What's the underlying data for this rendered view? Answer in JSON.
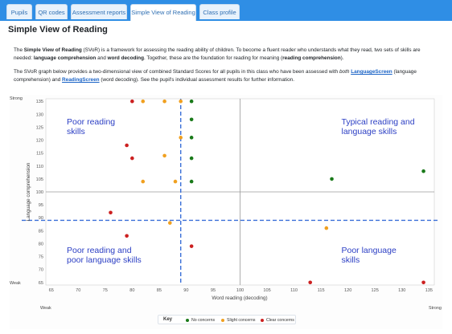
{
  "tabs": [
    {
      "label": "Pupils"
    },
    {
      "label": "QR codes"
    },
    {
      "label": "Assessment reports"
    },
    {
      "label": "Simple View of Reading",
      "active": true
    },
    {
      "label": "Class profile"
    }
  ],
  "page_title": "Simple View of Reading",
  "intro": {
    "p1_a": "The ",
    "p1_b": "Simple View of Reading",
    "p1_c": " (SVoR) is a framework for assessing the reading ability of children. To become a fluent reader who understands what they read, two sets of skills are needed: ",
    "p1_d": "language comprehension",
    "p1_e": " and ",
    "p1_f": "word decoding",
    "p1_g": ". Together, these are the foundation for reading for meaning (",
    "p1_h": "reading comprehension",
    "p1_i": ").",
    "p2_a": "The SVoR graph below provides a two-dimensional view of combined Standard Scores for all pupils in this class who have been assessed with ",
    "p2_b": "both",
    "p2_c": " ",
    "p2_link1": "LanguageScreen",
    "p2_d": " (language comprehension) and ",
    "p2_link2": "ReadingScreen",
    "p2_e": " (word decoding). See the pupil's individual assessment results for further information."
  },
  "chart_labels": {
    "strong_y": "Strong",
    "weak_y": "Weak",
    "weak_x": "Weak",
    "strong_x": "Strong"
  },
  "key": {
    "title": "Key",
    "items": [
      {
        "label": "No concerns",
        "color": "#1a7a1a"
      },
      {
        "label": "Slight concerns",
        "color": "#f0a020"
      },
      {
        "label": "Clear concerns",
        "color": "#cc2020"
      }
    ]
  },
  "chart_data": {
    "type": "scatter",
    "xlabel": "Word reading (decoding)",
    "ylabel": "Language comprehension",
    "xlim": [
      64,
      136
    ],
    "ylim": [
      64,
      136
    ],
    "x_ticks": [
      65,
      70,
      75,
      80,
      85,
      90,
      95,
      100,
      105,
      110,
      115,
      120,
      125,
      130,
      135
    ],
    "y_ticks": [
      65,
      70,
      75,
      80,
      85,
      90,
      95,
      100,
      105,
      110,
      115,
      120,
      125,
      130,
      135
    ],
    "mean_lines": {
      "x": 100,
      "y": 100
    },
    "threshold_lines": {
      "x": 89,
      "y": 89
    },
    "quadrants": [
      {
        "label_lines": [
          "Poor reading",
          "skills"
        ],
        "position": "top-left"
      },
      {
        "label_lines": [
          "Typical reading and",
          "language skills"
        ],
        "position": "top-right"
      },
      {
        "label_lines": [
          "Poor reading and",
          "poor language skills"
        ],
        "position": "bottom-left"
      },
      {
        "label_lines": [
          "Poor language",
          "skills"
        ],
        "position": "bottom-right"
      }
    ],
    "series": [
      {
        "name": "No concerns",
        "color": "#1a7a1a",
        "points": [
          [
            91,
            135
          ],
          [
            91,
            128
          ],
          [
            91,
            121
          ],
          [
            91,
            113
          ],
          [
            91,
            104
          ],
          [
            117,
            105
          ],
          [
            134,
            108
          ]
        ]
      },
      {
        "name": "Slight concerns",
        "color": "#f0a020",
        "points": [
          [
            82,
            135
          ],
          [
            86,
            135
          ],
          [
            89,
            135
          ],
          [
            89,
            121
          ],
          [
            86,
            114
          ],
          [
            82,
            104
          ],
          [
            88,
            104
          ],
          [
            87,
            88
          ],
          [
            116,
            86
          ]
        ]
      },
      {
        "name": "Clear concerns",
        "color": "#cc2020",
        "points": [
          [
            80,
            135
          ],
          [
            79,
            118
          ],
          [
            80,
            113
          ],
          [
            76,
            92
          ],
          [
            79,
            83
          ],
          [
            91,
            79
          ],
          [
            113,
            65
          ],
          [
            134,
            65
          ]
        ]
      }
    ]
  }
}
